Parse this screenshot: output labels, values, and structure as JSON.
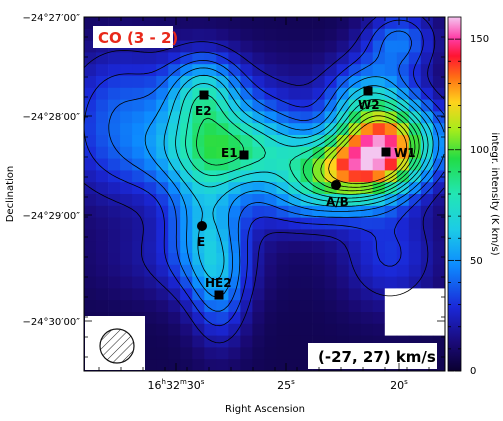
{
  "chart_data": {
    "type": "heatmap",
    "title": "",
    "xlabel": "Right Ascension",
    "ylabel": "Declination",
    "x_ticks": [
      {
        "id": "x1",
        "h": "16",
        "m": "32",
        "s": "30",
        "sup": "s"
      },
      {
        "id": "x2",
        "value": "25",
        "sup": "s"
      },
      {
        "id": "x3",
        "value": "20",
        "sup": "s"
      }
    ],
    "y_ticks": [
      {
        "id": "y1",
        "label": "−24°27′00″"
      },
      {
        "id": "y2",
        "label": "−24°28′00″"
      },
      {
        "id": "y3",
        "label": "−24°29′00″"
      },
      {
        "id": "y4",
        "label": "−24°30′00″"
      }
    ],
    "colorbar": {
      "label": "integr. intensity (K km/s)",
      "ticks": [
        "0",
        "50",
        "100",
        "150"
      ],
      "range": [
        0,
        160
      ]
    },
    "molecule_label": "CO (3 - 2)",
    "velocity_range_label": "(-27, 27) km/s",
    "sources": [
      {
        "name": "E2",
        "marker": "square"
      },
      {
        "name": "E1",
        "marker": "square"
      },
      {
        "name": "W2",
        "marker": "square"
      },
      {
        "name": "W1",
        "marker": "square"
      },
      {
        "name": "A/B",
        "marker": "circle"
      },
      {
        "name": "E",
        "marker": "circle"
      },
      {
        "name": "HE2",
        "marker": "square"
      }
    ],
    "beam": "hatched-circle",
    "contours": true
  }
}
